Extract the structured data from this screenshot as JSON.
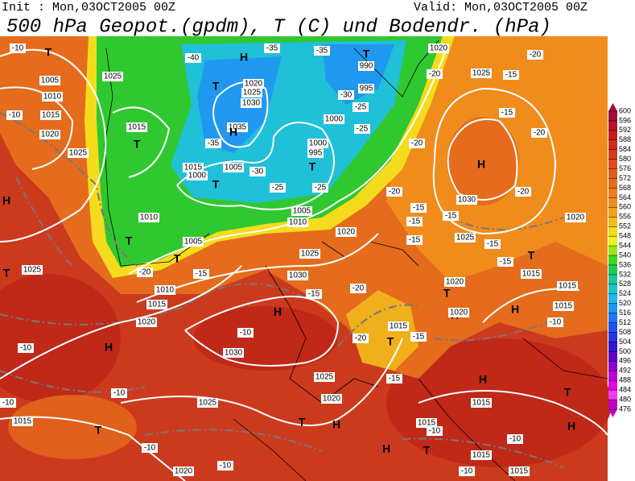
{
  "header": {
    "init": "Init : Mon,03OCT2005 00Z",
    "valid": "Valid: Mon,03OCT2005 00Z",
    "title": "500 hPa Geopot.(gpdm), T (C) und Bodendr. (hPa)"
  },
  "colorbar": {
    "ticks": [
      600,
      596,
      592,
      588,
      584,
      580,
      576,
      572,
      568,
      564,
      560,
      556,
      552,
      548,
      544,
      540,
      536,
      532,
      528,
      524,
      520,
      516,
      512,
      508,
      504,
      500,
      496,
      492,
      488,
      484,
      480,
      476
    ],
    "colors": [
      "#a0103a",
      "#b41428",
      "#c41c1c",
      "#cc2c1c",
      "#d43c1c",
      "#dc4c1c",
      "#e05c1c",
      "#e46c1c",
      "#ec7c1c",
      "#f08c1c",
      "#f4a01c",
      "#f4bc1c",
      "#f4dc1c",
      "#e8f41c",
      "#a0e41c",
      "#40d41c",
      "#20c85c",
      "#20c49c",
      "#20c4cc",
      "#20b4f0",
      "#2094f0",
      "#2074f0",
      "#2054f0",
      "#2834e0",
      "#3414d0",
      "#5c04c4",
      "#8c04cc",
      "#bc04d4",
      "#e004e0",
      "#f03cf0",
      "#c000c0"
    ]
  },
  "map_labels": [
    "T",
    1005,
    1010,
    1015,
    1020,
    1025,
    1025,
    1015,
    "T",
    "H",
    1025,
    "T",
    "T",
    1010,
    1005,
    "T",
    1010,
    1015,
    1020,
    -20,
    -15,
    "T",
    "H",
    1020,
    1025,
    1030,
    1035,
    "H",
    1015,
    1000,
    "T",
    1005,
    -30,
    -40,
    -35,
    -35,
    -35,
    "T",
    990,
    995,
    -30,
    -25,
    1000,
    1000,
    995,
    "T",
    -25,
    -25,
    1005,
    1010,
    1020,
    -15,
    1025,
    1030,
    "H",
    -15,
    -20,
    -10,
    1030,
    1015,
    "T",
    -20,
    -15,
    -15,
    1025,
    1020,
    1025,
    "H",
    -10,
    -10,
    -10,
    1015,
    "T",
    -10,
    1020,
    -10,
    "T",
    "H",
    "H",
    1015,
    -10,
    "T",
    1015,
    "H",
    1015,
    1015,
    -10,
    "T",
    "H",
    "H",
    "H",
    1020,
    "T",
    1020,
    "T",
    1015,
    -15,
    -15,
    1025,
    "H",
    1030,
    -15,
    -20,
    -20,
    -20,
    1025,
    -15,
    -20,
    -15,
    -20,
    -20,
    1020,
    1020,
    -10,
    -10,
    -10,
    1015,
    1015,
    -10,
    -15,
    -25,
    -15
  ]
}
